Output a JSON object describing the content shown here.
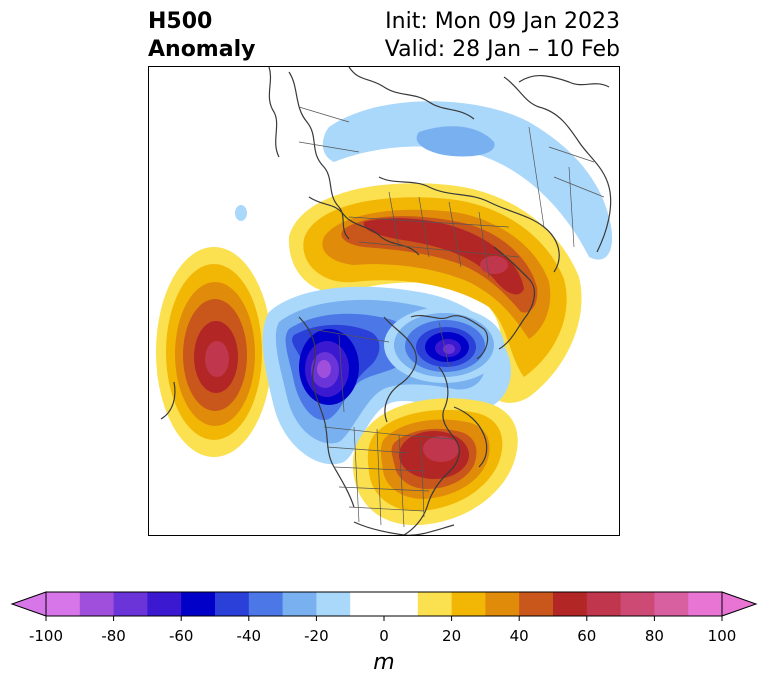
{
  "header": {
    "title_line1": "H500",
    "title_line2": "Anomaly",
    "init": "Init: Mon 09 Jan 2023",
    "valid": "Valid: 28 Jan – 10 Feb"
  },
  "colorbar": {
    "units": "m",
    "ticks": [
      -100,
      -80,
      -60,
      -40,
      -20,
      0,
      20,
      40,
      60,
      80,
      100
    ],
    "levels": [
      -100,
      -90,
      -80,
      -70,
      -60,
      -50,
      -40,
      -30,
      -20,
      -10,
      10,
      20,
      30,
      40,
      50,
      60,
      70,
      80,
      90,
      100
    ],
    "colors": [
      "#d776e8",
      "#9f4fdc",
      "#6a34d9",
      "#3a19d0",
      "#0000c8",
      "#2b3fd9",
      "#4b78e6",
      "#78b0f0",
      "#aad8fb",
      "#ffffff",
      "#fbe04f",
      "#f2b705",
      "#e08b0a",
      "#c9561a",
      "#b32626",
      "#c0374d",
      "#cc4a73",
      "#d85fa0",
      "#e874d3"
    ],
    "under_color": "#d776e8",
    "over_color": "#e874d3"
  }
}
